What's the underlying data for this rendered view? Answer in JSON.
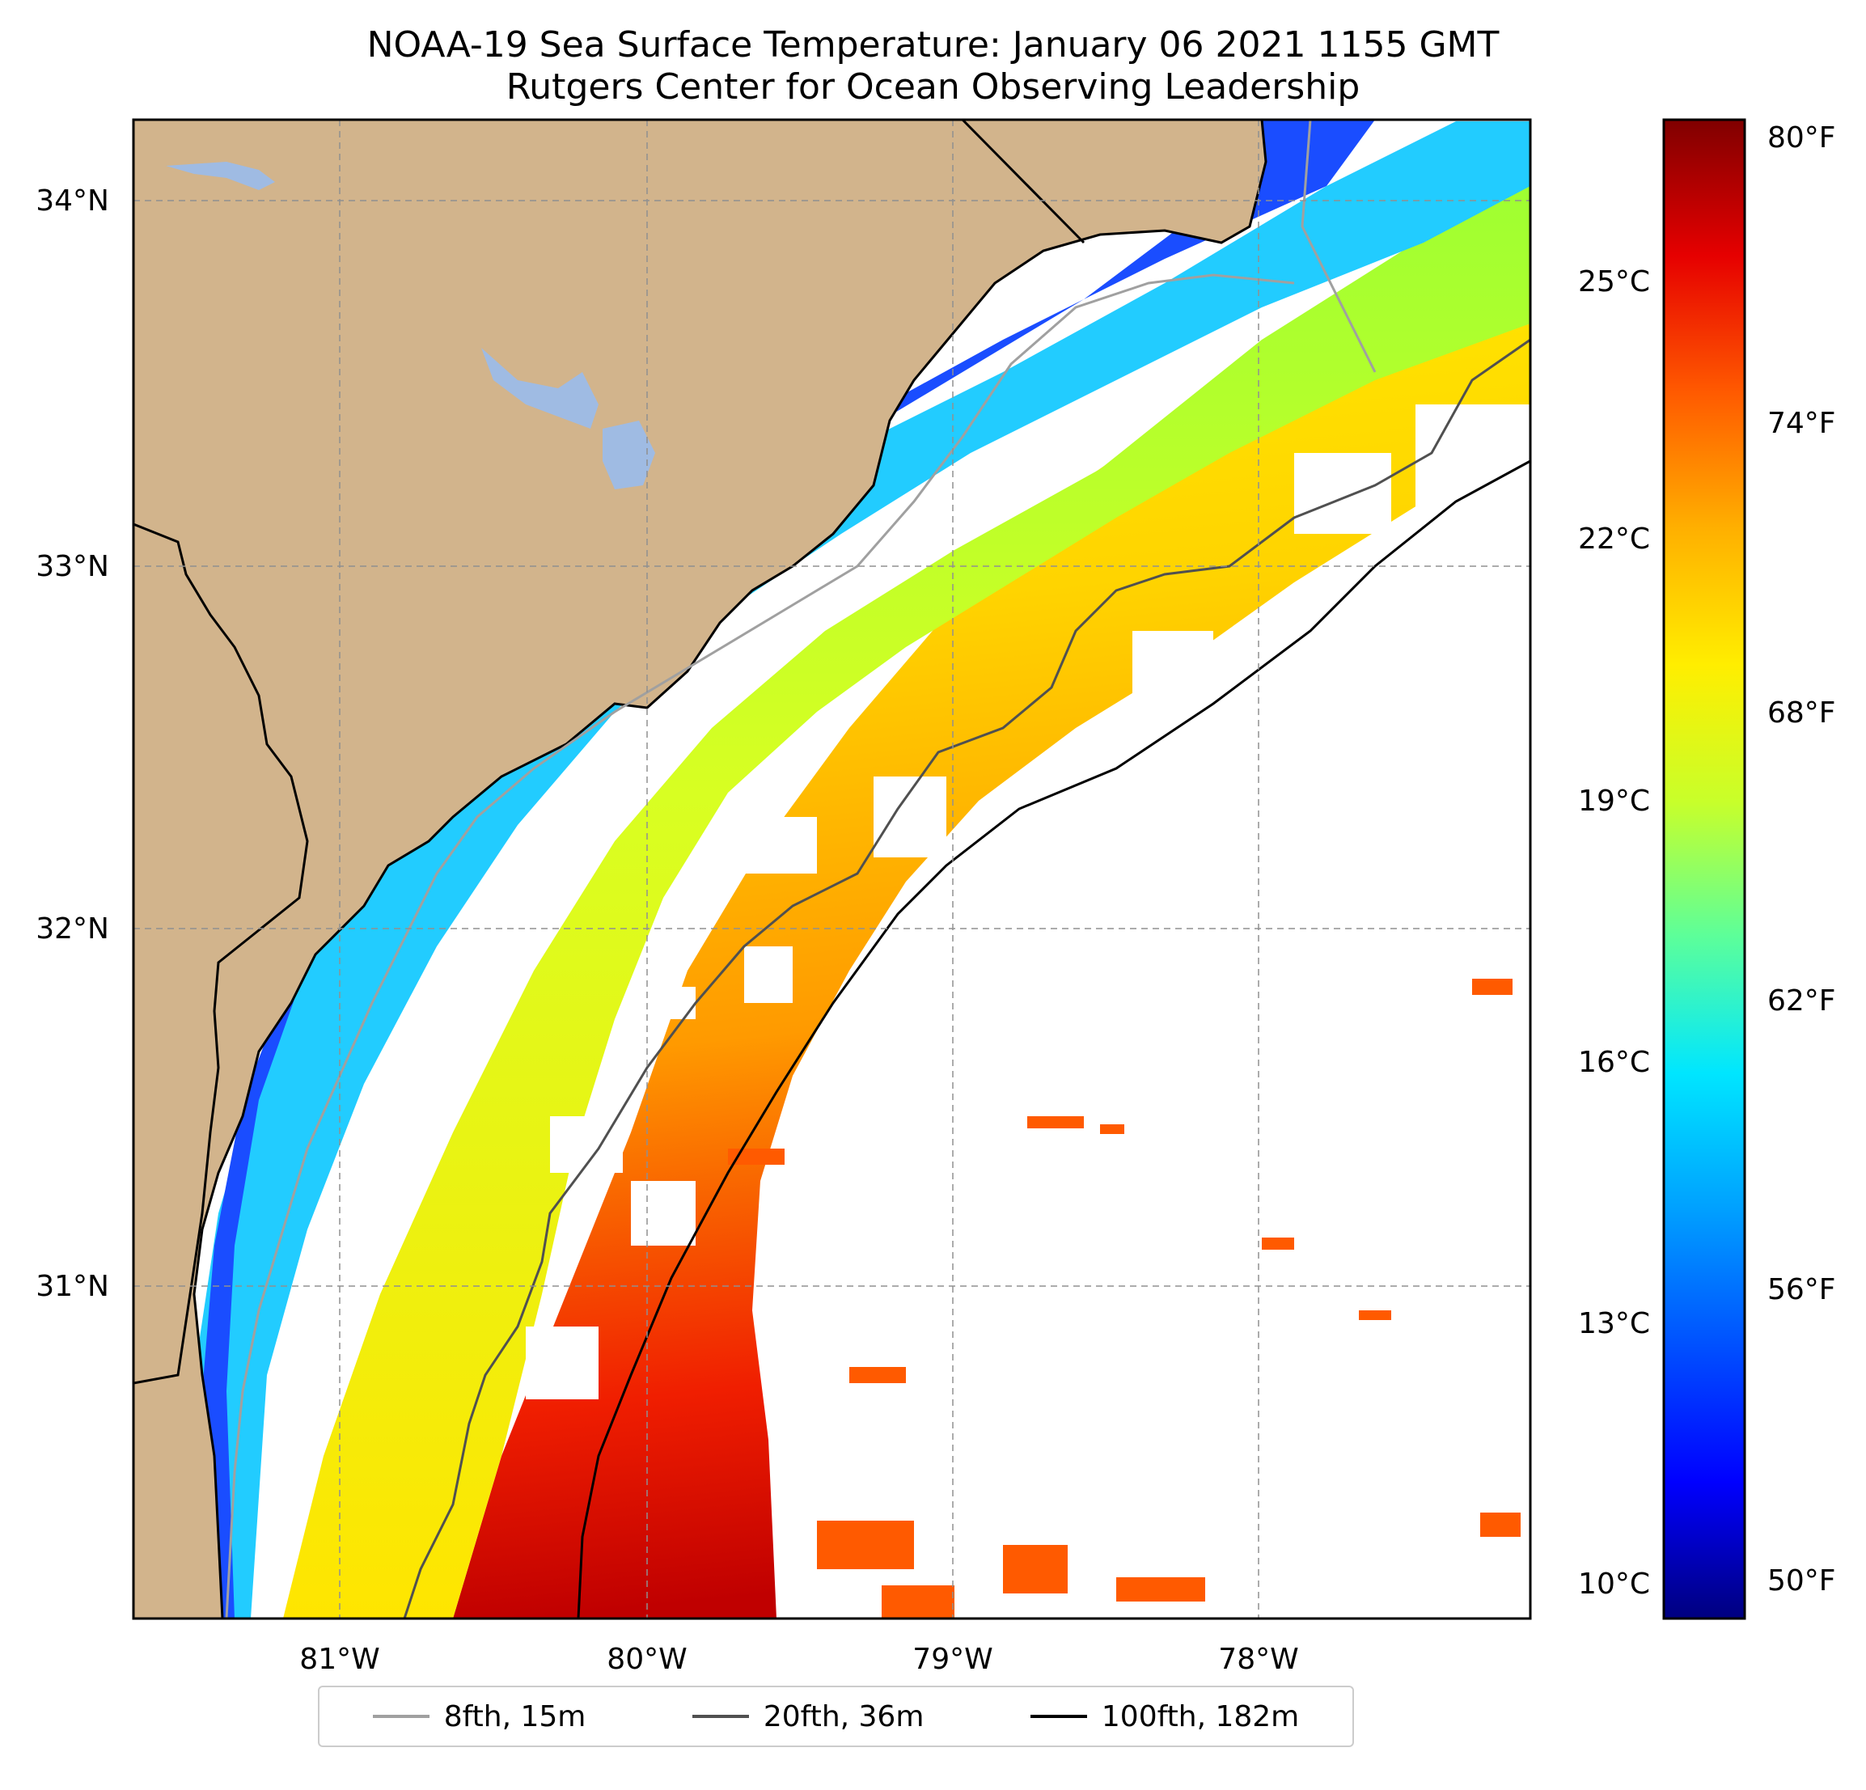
{
  "title": {
    "line1": "NOAA-19 Sea Surface Temperature: January 06 2021 1155 GMT",
    "line2": "Rutgers Center for Ocean Observing Leadership"
  },
  "map": {
    "lat_labels": [
      "34°N",
      "33°N",
      "32°N",
      "31°N"
    ],
    "lon_labels": [
      "81°W",
      "80°W",
      "79°W",
      "78°W"
    ],
    "colors": {
      "land": "#d2b48c",
      "lake": "#9fbbe3",
      "no_data": "#ffffff",
      "coastline": "#000000"
    }
  },
  "colorbar": {
    "celsius_labels": [
      "25°C",
      "22°C",
      "19°C",
      "16°C",
      "13°C",
      "10°C"
    ],
    "fahrenheit_labels": [
      "80°F",
      "74°F",
      "68°F",
      "62°F",
      "56°F",
      "50°F"
    ],
    "gradient_colors": [
      "#800000",
      "#e60000",
      "#ff5a00",
      "#ffb000",
      "#ffee00",
      "#c8ff2a",
      "#5cff9a",
      "#00e6ff",
      "#00a0ff",
      "#0050ff",
      "#0000ff",
      "#00007f"
    ]
  },
  "legend": {
    "items": [
      {
        "label": "8fth, 15m",
        "color": "#a0a0a0"
      },
      {
        "label": "20fth, 36m",
        "color": "#505050"
      },
      {
        "label": "100fth, 182m",
        "color": "#000000"
      }
    ]
  }
}
